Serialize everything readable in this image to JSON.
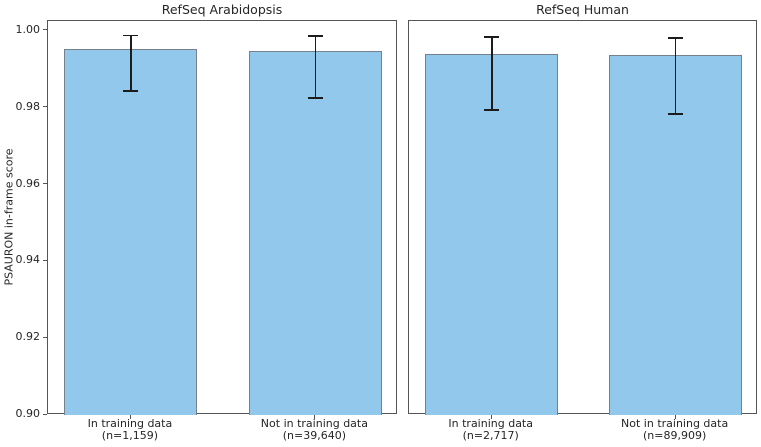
{
  "chart_data": {
    "type": "bar",
    "title": "",
    "ylabel": "PSAURON in-frame score",
    "ylim": [
      0.9,
      1.0026
    ],
    "ytick_labels": [
      "1.00",
      "0.98",
      "0.96",
      "0.94",
      "0.92",
      "0.90"
    ],
    "ytick_values": [
      1.0,
      0.98,
      0.96,
      0.94,
      0.92,
      0.9
    ],
    "grid": false,
    "legend": null,
    "colors": {
      "bar_fill": "#92c8ec",
      "bar_edge": "#76818b",
      "error_bar": "#1c1c1c",
      "axis": "#555555",
      "text": "#262626"
    },
    "panels": [
      {
        "title": "RefSeq Arabidopsis",
        "categories": [
          [
            "In training data",
            "(n=1,159)"
          ],
          [
            "Not in training data",
            "(n=39,640)"
          ]
        ],
        "values": [
          0.9953,
          0.9948
        ],
        "error_low": [
          0.9844,
          0.9826
        ],
        "error_high": [
          0.9988,
          0.9987
        ]
      },
      {
        "title": "RefSeq Human",
        "categories": [
          [
            "In training data",
            "(n=2,717)"
          ],
          [
            "Not in training data",
            "(n=89,909)"
          ]
        ],
        "values": [
          0.994,
          0.9938
        ],
        "error_low": [
          0.9794,
          0.9784
        ],
        "error_high": [
          0.9984,
          0.9982
        ]
      }
    ]
  }
}
